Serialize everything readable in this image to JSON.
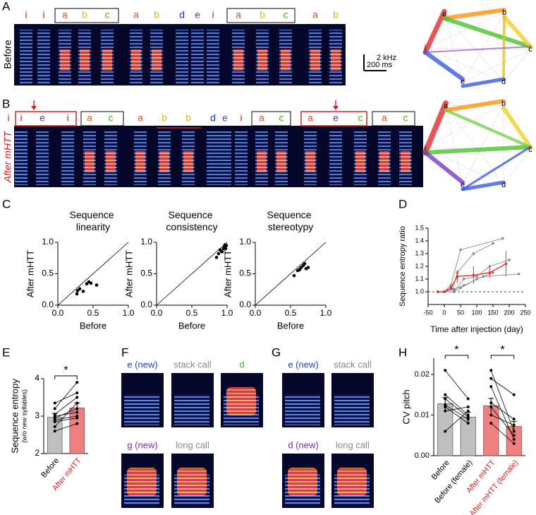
{
  "figure": {
    "panel_labels": [
      "A",
      "B",
      "C",
      "D",
      "E",
      "F",
      "G",
      "H"
    ],
    "syllable_colors": {
      "i": "#d7191c",
      "a": "#e8501a",
      "b": "#e0b81a",
      "c": "#4caf1e",
      "d": "#2030c0",
      "e": "#7030a0"
    },
    "a": {
      "condition": "Before",
      "syllables": [
        "i",
        "i",
        "a",
        "b",
        "c",
        "a",
        "b",
        "d",
        "e",
        "i",
        "a",
        "b",
        "c",
        "a",
        "b"
      ],
      "scale_freq": "2 kHz",
      "scale_time": "200 ms",
      "network_nodes": [
        "a",
        "b",
        "c",
        "d",
        "e",
        "i"
      ]
    },
    "b": {
      "condition": "After mHTT",
      "syllables": [
        "i",
        "i",
        "e",
        "i",
        "a",
        "c",
        "a",
        "b",
        "b",
        "d",
        "e",
        "i",
        "a",
        "c",
        "a",
        "e",
        "c",
        "a",
        "c"
      ],
      "network_nodes": [
        "a",
        "b",
        "c",
        "d",
        "e",
        "i"
      ]
    },
    "f": {
      "thumbnails": [
        "e (new)",
        "stack call",
        "d",
        "g (new)",
        "long call"
      ],
      "thumbnail_colors": [
        "#2a3fbf",
        "#888888",
        "#4caf1e",
        "#7030a0",
        "#888888"
      ]
    },
    "g": {
      "thumbnails": [
        "e (new)",
        "stack call",
        "d (new)",
        "long call"
      ],
      "thumbnail_colors": [
        "#2a3fbf",
        "#888888",
        "#7030a0",
        "#888888"
      ]
    }
  },
  "chart_data": [
    {
      "type": "scatter",
      "title": "Sequence linearity",
      "xlabel": "Before",
      "ylabel": "After mHTT",
      "color": "#000000",
      "x": [
        0.27,
        0.28,
        0.31,
        0.36,
        0.41,
        0.44,
        0.47,
        0.55
      ],
      "values": [
        0.18,
        0.23,
        0.26,
        0.22,
        0.34,
        0.37,
        0.35,
        0.32
      ],
      "xlim": [
        0,
        1
      ],
      "ylim": [
        0,
        1
      ],
      "xticks": [
        {
          "value": 0,
          "label": "0.0"
        },
        0.5,
        {
          "value": 1,
          "label": "1.0"
        }
      ],
      "yticks": [
        {
          "value": 0,
          "label": "0.0"
        },
        0.5,
        {
          "value": 1,
          "label": "1.0"
        }
      ]
    },
    {
      "type": "scatter",
      "title": "Sequence consistency",
      "xlabel": "Before",
      "ylabel": "After mHTT",
      "color": "#000000",
      "x": [
        0.85,
        0.88,
        0.9,
        0.92,
        0.93,
        0.95,
        0.96,
        0.97,
        0.98,
        0.99
      ],
      "values": [
        0.76,
        0.82,
        0.88,
        0.86,
        0.85,
        0.9,
        0.93,
        0.96,
        0.9,
        0.95
      ],
      "xlim": [
        0,
        1
      ],
      "ylim": [
        0,
        1
      ],
      "xticks": [
        {
          "value": 0,
          "label": "0.0"
        },
        0.5,
        {
          "value": 1,
          "label": "1.0"
        }
      ],
      "yticks": [
        {
          "value": 0,
          "label": "0.0"
        },
        0.5,
        {
          "value": 1,
          "label": "1.0"
        }
      ]
    },
    {
      "type": "scatter",
      "title": "Sequence stereotypy",
      "xlabel": "Before",
      "ylabel": "After mHTT",
      "color": "#000000",
      "x": [
        0.55,
        0.6,
        0.62,
        0.63,
        0.65,
        0.68,
        0.7,
        0.72,
        0.75
      ],
      "values": [
        0.47,
        0.55,
        0.56,
        0.57,
        0.6,
        0.63,
        0.66,
        0.58,
        0.6
      ],
      "xlim": [
        0,
        1
      ],
      "ylim": [
        0,
        1
      ],
      "xticks": [
        {
          "value": 0,
          "label": "0.0"
        },
        0.5,
        {
          "value": 1,
          "label": "1.0"
        }
      ],
      "yticks": [
        {
          "value": 0,
          "label": "0.0"
        },
        0.5,
        {
          "value": 1,
          "label": "1.0"
        }
      ]
    },
    {
      "type": "line",
      "xlabel": "Time after injection (day)",
      "ylabel": "Sequence entropy ratio",
      "hline": 1,
      "xlim": [
        -50,
        250
      ],
      "ylim": [
        0.9,
        1.5
      ],
      "xticks": [
        -50,
        0,
        50,
        100,
        150,
        200,
        250
      ],
      "yticks": [
        {
          "value": 1,
          "label": "1.0"
        },
        1.1,
        1.2,
        1.3,
        1.4,
        1.5
      ],
      "series": [
        {
          "color": "#888888",
          "x": [
            -20,
            0,
            20,
            50,
            180
          ],
          "values": [
            1,
            1,
            1.05,
            1.33,
            1.42
          ]
        },
        {
          "color": "#888888",
          "x": [
            -20,
            0,
            25,
            40,
            90,
            150
          ],
          "values": [
            1,
            1,
            1.02,
            1.15,
            1.3,
            1.38
          ]
        },
        {
          "color": "#888888",
          "x": [
            -20,
            0,
            30,
            60,
            100,
            140,
            200
          ],
          "values": [
            1,
            1,
            1.0,
            1.1,
            1.12,
            1.2,
            1.25
          ]
        },
        {
          "color": "#888888",
          "x": [
            -20,
            0,
            30,
            60,
            120,
            230
          ],
          "values": [
            1,
            1,
            1.02,
            1.05,
            1.12,
            1.14
          ]
        },
        {
          "color": "#888888",
          "x": [
            -20,
            0,
            30,
            50,
            100,
            150
          ],
          "values": [
            1,
            1,
            1.0,
            1.03,
            1.1,
            1.15
          ]
        },
        {
          "color": "#e03030",
          "x": [
            -20,
            0,
            20,
            40,
            90,
            140,
            190
          ],
          "values": [
            1,
            1,
            1.03,
            1.12,
            1.13,
            1.15,
            1.22
          ],
          "errors": [
            0,
            0.01,
            0.02,
            0.05,
            0.07,
            0.04,
            0.1
          ]
        }
      ]
    },
    {
      "type": "bar",
      "ylabel": "Sequence entropy",
      "ylabel_note": "(w/o new syllables)",
      "categories": [
        "Before",
        "After mHTT"
      ],
      "values": [
        2.97,
        3.22
      ],
      "errors": [
        0.1,
        0.13
      ],
      "colors": [
        "#bfbfbf",
        "#f08080"
      ],
      "label_colors": [
        "#000000",
        "#d62020"
      ],
      "individuals": [
        [
          2.6,
          2.8
        ],
        [
          2.72,
          3.35
        ],
        [
          2.85,
          2.95
        ],
        [
          3.0,
          3.1
        ],
        [
          3.05,
          3.5
        ],
        [
          3.2,
          3.9
        ],
        [
          3.35,
          3.62
        ],
        [
          2.95,
          3.2
        ],
        [
          2.9,
          3.0
        ]
      ],
      "annotations": [
        "*"
      ],
      "ylim": [
        2,
        4
      ],
      "yticks": [
        2,
        3,
        4
      ]
    },
    {
      "type": "bar",
      "ylabel": "CV pitch",
      "categories": [
        "Before",
        "Before (female)",
        "After mHTT",
        "After mHTT (female)"
      ],
      "values": [
        0.0128,
        0.0095,
        0.0123,
        0.0072
      ],
      "errors": [
        0.0015,
        0.0012,
        0.0018,
        0.0012
      ],
      "colors": [
        "#bfbfbf",
        "#bfbfbf",
        "#f08080",
        "#f08080"
      ],
      "label_colors": [
        "#000000",
        "#000000",
        "#d62020",
        "#d62020"
      ],
      "individuals": [
        [
          0.021,
          0.014,
          null,
          null
        ],
        [
          0.015,
          0.01,
          null,
          null
        ],
        [
          0.014,
          0.0095,
          null,
          null
        ],
        [
          0.0125,
          0.009,
          null,
          null
        ],
        [
          0.012,
          0.008,
          null,
          null
        ],
        [
          0.011,
          0.012,
          null,
          null
        ],
        [
          0.006,
          0.011,
          null,
          null
        ],
        [
          null,
          null,
          0.021,
          0.006
        ],
        [
          null,
          null,
          0.019,
          0.015
        ],
        [
          null,
          null,
          0.017,
          0.004
        ],
        [
          null,
          null,
          0.013,
          0.009
        ],
        [
          null,
          null,
          0.012,
          0.005
        ],
        [
          null,
          null,
          0.01,
          0.0075
        ],
        [
          null,
          null,
          0.008,
          0.003
        ]
      ],
      "annotations": [
        "*",
        "*"
      ],
      "ylim": [
        0,
        0.024
      ],
      "yticks": [
        {
          "value": 0,
          "label": "0.00"
        },
        0.01,
        0.02
      ]
    }
  ]
}
